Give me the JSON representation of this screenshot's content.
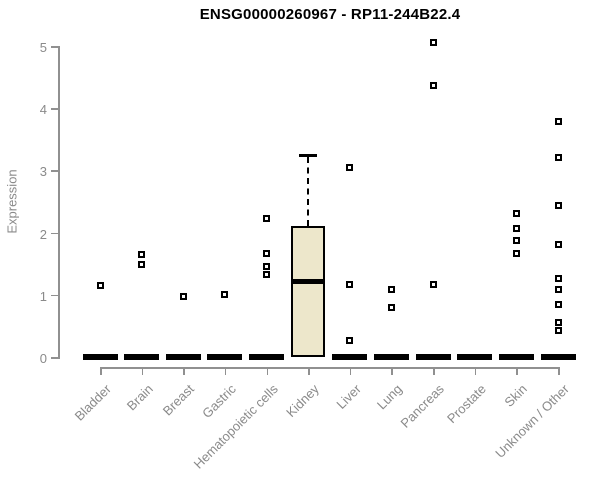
{
  "chart_data": {
    "type": "boxplot",
    "title": "ENSG00000260967 - RP11-244B22.4",
    "ylabel": "Expression",
    "xlabel": "",
    "ylim": [
      0,
      5
    ],
    "yticks": [
      0,
      1,
      2,
      3,
      4,
      5
    ],
    "grid": false,
    "legend": false,
    "categories": [
      "Bladder",
      "Brain",
      "Breast",
      "Gastric",
      "Hematopoietic cells",
      "Kidney",
      "Liver",
      "Lung",
      "Pancreas",
      "Prostate",
      "Skin",
      "Unknown / Other"
    ],
    "groups": [
      {
        "category": "Bladder",
        "median": 0,
        "points": [
          1.15
        ]
      },
      {
        "category": "Brain",
        "median": 0,
        "points": [
          1.65,
          1.48
        ]
      },
      {
        "category": "Breast",
        "median": 0,
        "points": [
          0.98
        ]
      },
      {
        "category": "Gastric",
        "median": 0,
        "points": [
          1.0
        ]
      },
      {
        "category": "Hematopoietic cells",
        "median": 0,
        "points": [
          2.22,
          1.67,
          1.46,
          1.32
        ]
      },
      {
        "category": "Kidney",
        "box": {
          "whisker_high": 3.26,
          "q3": 2.11,
          "median": 1.21,
          "q1": 0,
          "whisker_low": 0
        },
        "points": []
      },
      {
        "category": "Liver",
        "median": 0,
        "points": [
          3.04,
          1.16,
          0.26
        ]
      },
      {
        "category": "Lung",
        "median": 0,
        "points": [
          1.09,
          0.8
        ]
      },
      {
        "category": "Pancreas",
        "median": 0,
        "points": [
          5.06,
          4.36,
          1.16
        ]
      },
      {
        "category": "Prostate",
        "median": 0,
        "points": []
      },
      {
        "category": "Skin",
        "median": 0,
        "points": [
          2.31,
          2.06,
          1.88,
          1.66
        ]
      },
      {
        "category": "Unknown / Other",
        "median": 0,
        "points": [
          3.79,
          3.21,
          2.44,
          1.81,
          1.27,
          1.08,
          0.84,
          0.55,
          0.43
        ]
      }
    ],
    "colors": {
      "box_fill": "#EDE7CB",
      "box_border": "#000000",
      "point": "#000000",
      "axis": "#909090",
      "tick_text": "#8a8a8a",
      "title_text": "#000000"
    }
  }
}
